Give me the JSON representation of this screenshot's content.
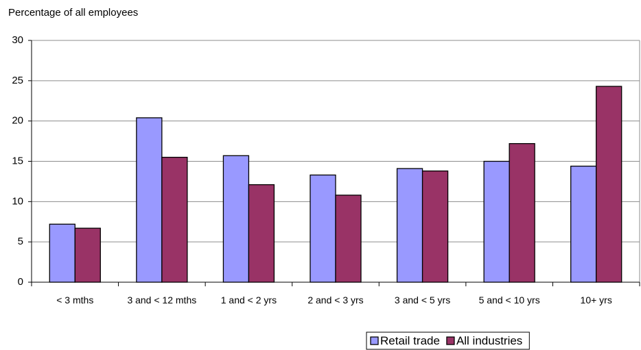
{
  "chart_data": {
    "type": "bar",
    "y_label": "Percentage of all employees",
    "categories": [
      "< 3 mths",
      "3 and < 12 mths",
      "1 and < 2 yrs",
      "2 and < 3 yrs",
      "3 and < 5 yrs",
      "5 and < 10 yrs",
      "10+ yrs"
    ],
    "series": [
      {
        "name": "Retail trade",
        "color": "#9999ff",
        "values": [
          7.2,
          20.4,
          15.7,
          13.3,
          14.1,
          15.0,
          14.4
        ]
      },
      {
        "name": "All industries",
        "color": "#993366",
        "values": [
          6.7,
          15.5,
          12.1,
          10.8,
          13.8,
          17.2,
          24.3
        ]
      }
    ],
    "ylim": [
      0,
      30
    ],
    "yticks": [
      0,
      5,
      10,
      15,
      20,
      25,
      30
    ],
    "grid": true,
    "legend": "bottom-right"
  }
}
